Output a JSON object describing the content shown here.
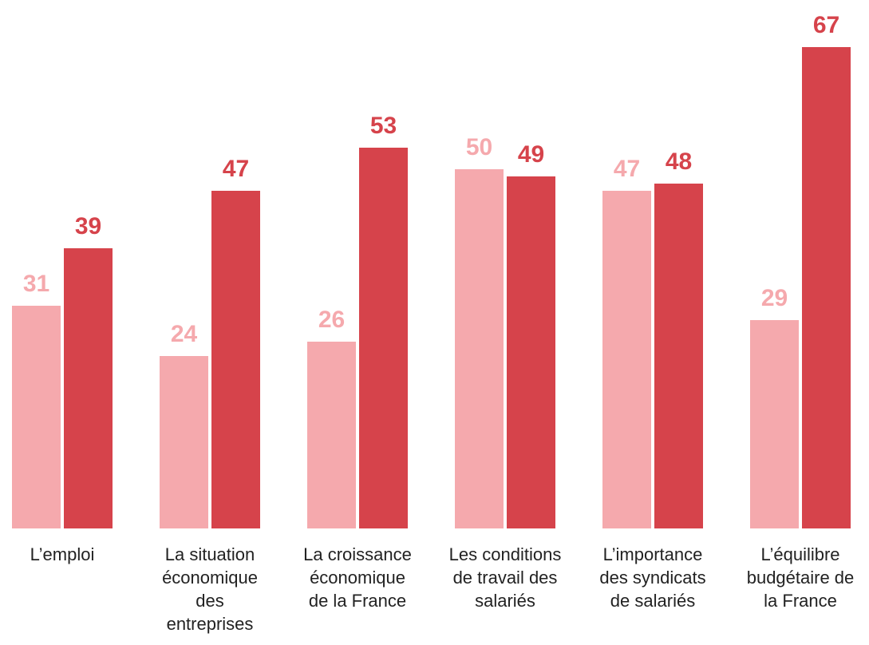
{
  "chart_data": {
    "type": "bar",
    "categories": [
      "L’emploi",
      "La situation\néconomique\ndes\nentreprises",
      "La croissance\néconomique\nde la France",
      "Les conditions\nde travail des\nsalariés",
      "L’importance\ndes syndicats\nde salariés",
      "L’équilibre\nbudgétaire de\nla France"
    ],
    "series": [
      {
        "color": "#f5a9ad",
        "values": [
          31,
          24,
          26,
          50,
          47,
          29
        ]
      },
      {
        "color": "#d6434b",
        "values": [
          39,
          47,
          53,
          49,
          48,
          67
        ]
      }
    ],
    "ylim": [
      0,
      70
    ]
  }
}
